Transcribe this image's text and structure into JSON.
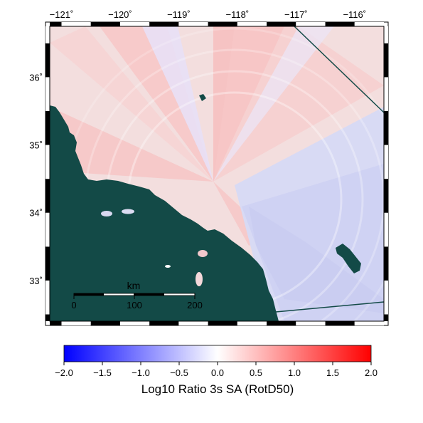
{
  "map": {
    "lon_ticks": [
      "−121˚",
      "−120˚",
      "−119˚",
      "−118˚",
      "−117˚",
      "−116˚"
    ],
    "lat_ticks": [
      "33˚",
      "34˚",
      "35˚",
      "36˚"
    ],
    "lon_values": [
      -121,
      -120,
      -119,
      -118,
      -117,
      -116
    ],
    "lat_values": [
      33,
      34,
      35,
      36
    ],
    "extent": {
      "lon": [
        -121.2,
        -115.5
      ],
      "lat": [
        32.4,
        36.75
      ]
    },
    "land_color": "#134a47",
    "scale_bar": {
      "unit_label": "km",
      "tick_labels": [
        "0",
        "100",
        "200"
      ],
      "tick_values": [
        0,
        100,
        200
      ]
    }
  },
  "colorbar": {
    "title": "Log10 Ratio 3s SA (RotD50)",
    "range": [
      -2.0,
      2.0
    ],
    "tick_labels": [
      "−2.0",
      "−1.5",
      "−1.0",
      "−0.5",
      "0.0",
      "0.5",
      "1.0",
      "1.5",
      "2.0"
    ],
    "tick_values": [
      -2.0,
      -1.5,
      -1.0,
      -0.5,
      0.0,
      0.5,
      1.0,
      1.5,
      2.0
    ],
    "color_low": "#0000ff",
    "color_mid": "#ffffff",
    "color_high": "#ff0000"
  }
}
